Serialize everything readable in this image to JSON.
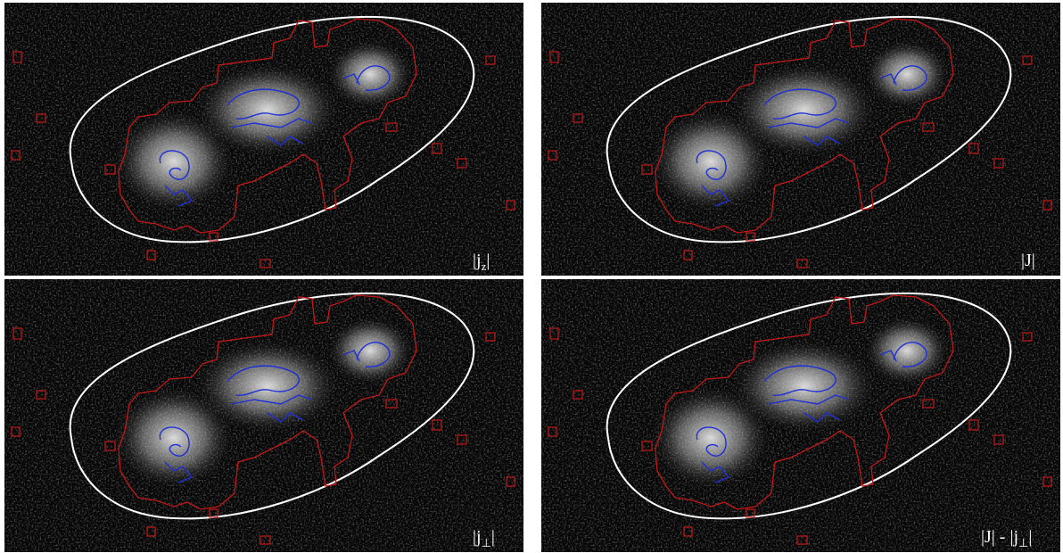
{
  "panels": [
    {
      "label": {
        "pre": "|j",
        "sub": "z",
        "post": "|"
      }
    },
    {
      "label": {
        "pre": "|J|"
      }
    },
    {
      "label": {
        "pre": "|j",
        "sub": "⊥",
        "post": "|"
      }
    },
    {
      "label": {
        "pre": "|J| - |j",
        "sub": "⊥",
        "post": "|"
      }
    }
  ]
}
